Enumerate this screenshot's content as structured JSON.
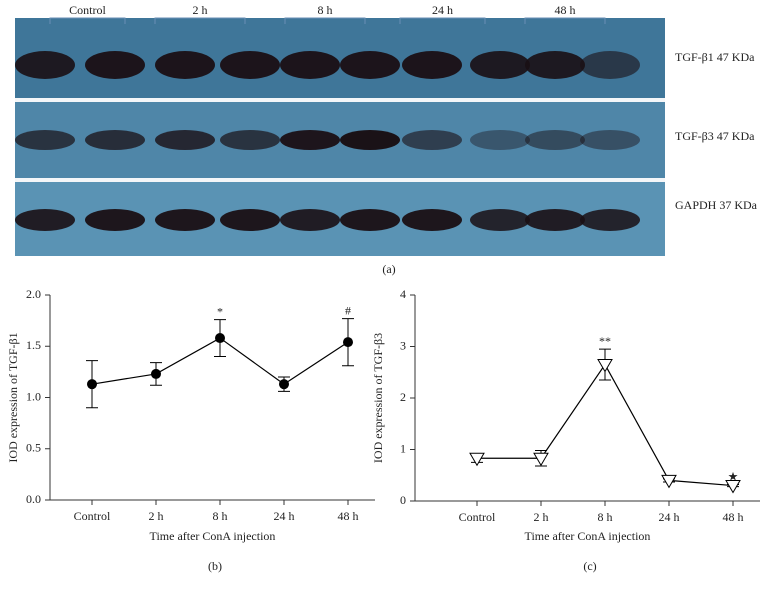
{
  "blot": {
    "groups": [
      "Control",
      "2 h",
      "8 h",
      "24 h",
      "48 h"
    ],
    "rows": [
      "TGF-β1 47 KDa",
      "TGF-β3 47 KDa",
      "GAPDH 37 KDa"
    ],
    "caption": "(a)"
  },
  "chart_data": [
    {
      "type": "line",
      "caption": "(b)",
      "xlabel": "Time after ConA injection",
      "ylabel": "IOD expression of TGF-β1",
      "categories": [
        "Control",
        "2 h",
        "8 h",
        "24 h",
        "48 h"
      ],
      "series": [
        {
          "color": "#000000",
          "marker": "circle",
          "values": [
            1.13,
            1.23,
            1.58,
            1.13,
            1.54
          ],
          "errors": [
            0.23,
            0.11,
            0.18,
            0.07,
            0.23
          ],
          "point_labels": [
            null,
            null,
            "*",
            null,
            "#"
          ]
        }
      ],
      "ylim": [
        0,
        2
      ],
      "yticks": [
        {
          "value": 0,
          "label": "0.0"
        },
        {
          "value": 0.5,
          "label": "0.5"
        },
        {
          "value": 1,
          "label": "1.0"
        },
        {
          "value": 1.5,
          "label": "1.5"
        },
        {
          "value": 2,
          "label": "2.0"
        }
      ]
    },
    {
      "type": "line",
      "caption": "(c)",
      "xlabel": "Time after ConA injection",
      "ylabel": "IOD expression of TGF-β3",
      "categories": [
        "Control",
        "2 h",
        "8 h",
        "24 h",
        "48 h"
      ],
      "series": [
        {
          "color": "#000000",
          "marker": "triangle-down",
          "values": [
            0.83,
            0.83,
            2.65,
            0.4,
            0.3
          ],
          "errors": [
            0.08,
            0.15,
            0.3,
            0.03,
            0.02
          ],
          "point_labels": [
            null,
            null,
            "**",
            null,
            "★"
          ]
        }
      ],
      "ylim": [
        0,
        4
      ],
      "yticks": [
        0,
        1,
        2,
        3,
        4
      ]
    }
  ]
}
